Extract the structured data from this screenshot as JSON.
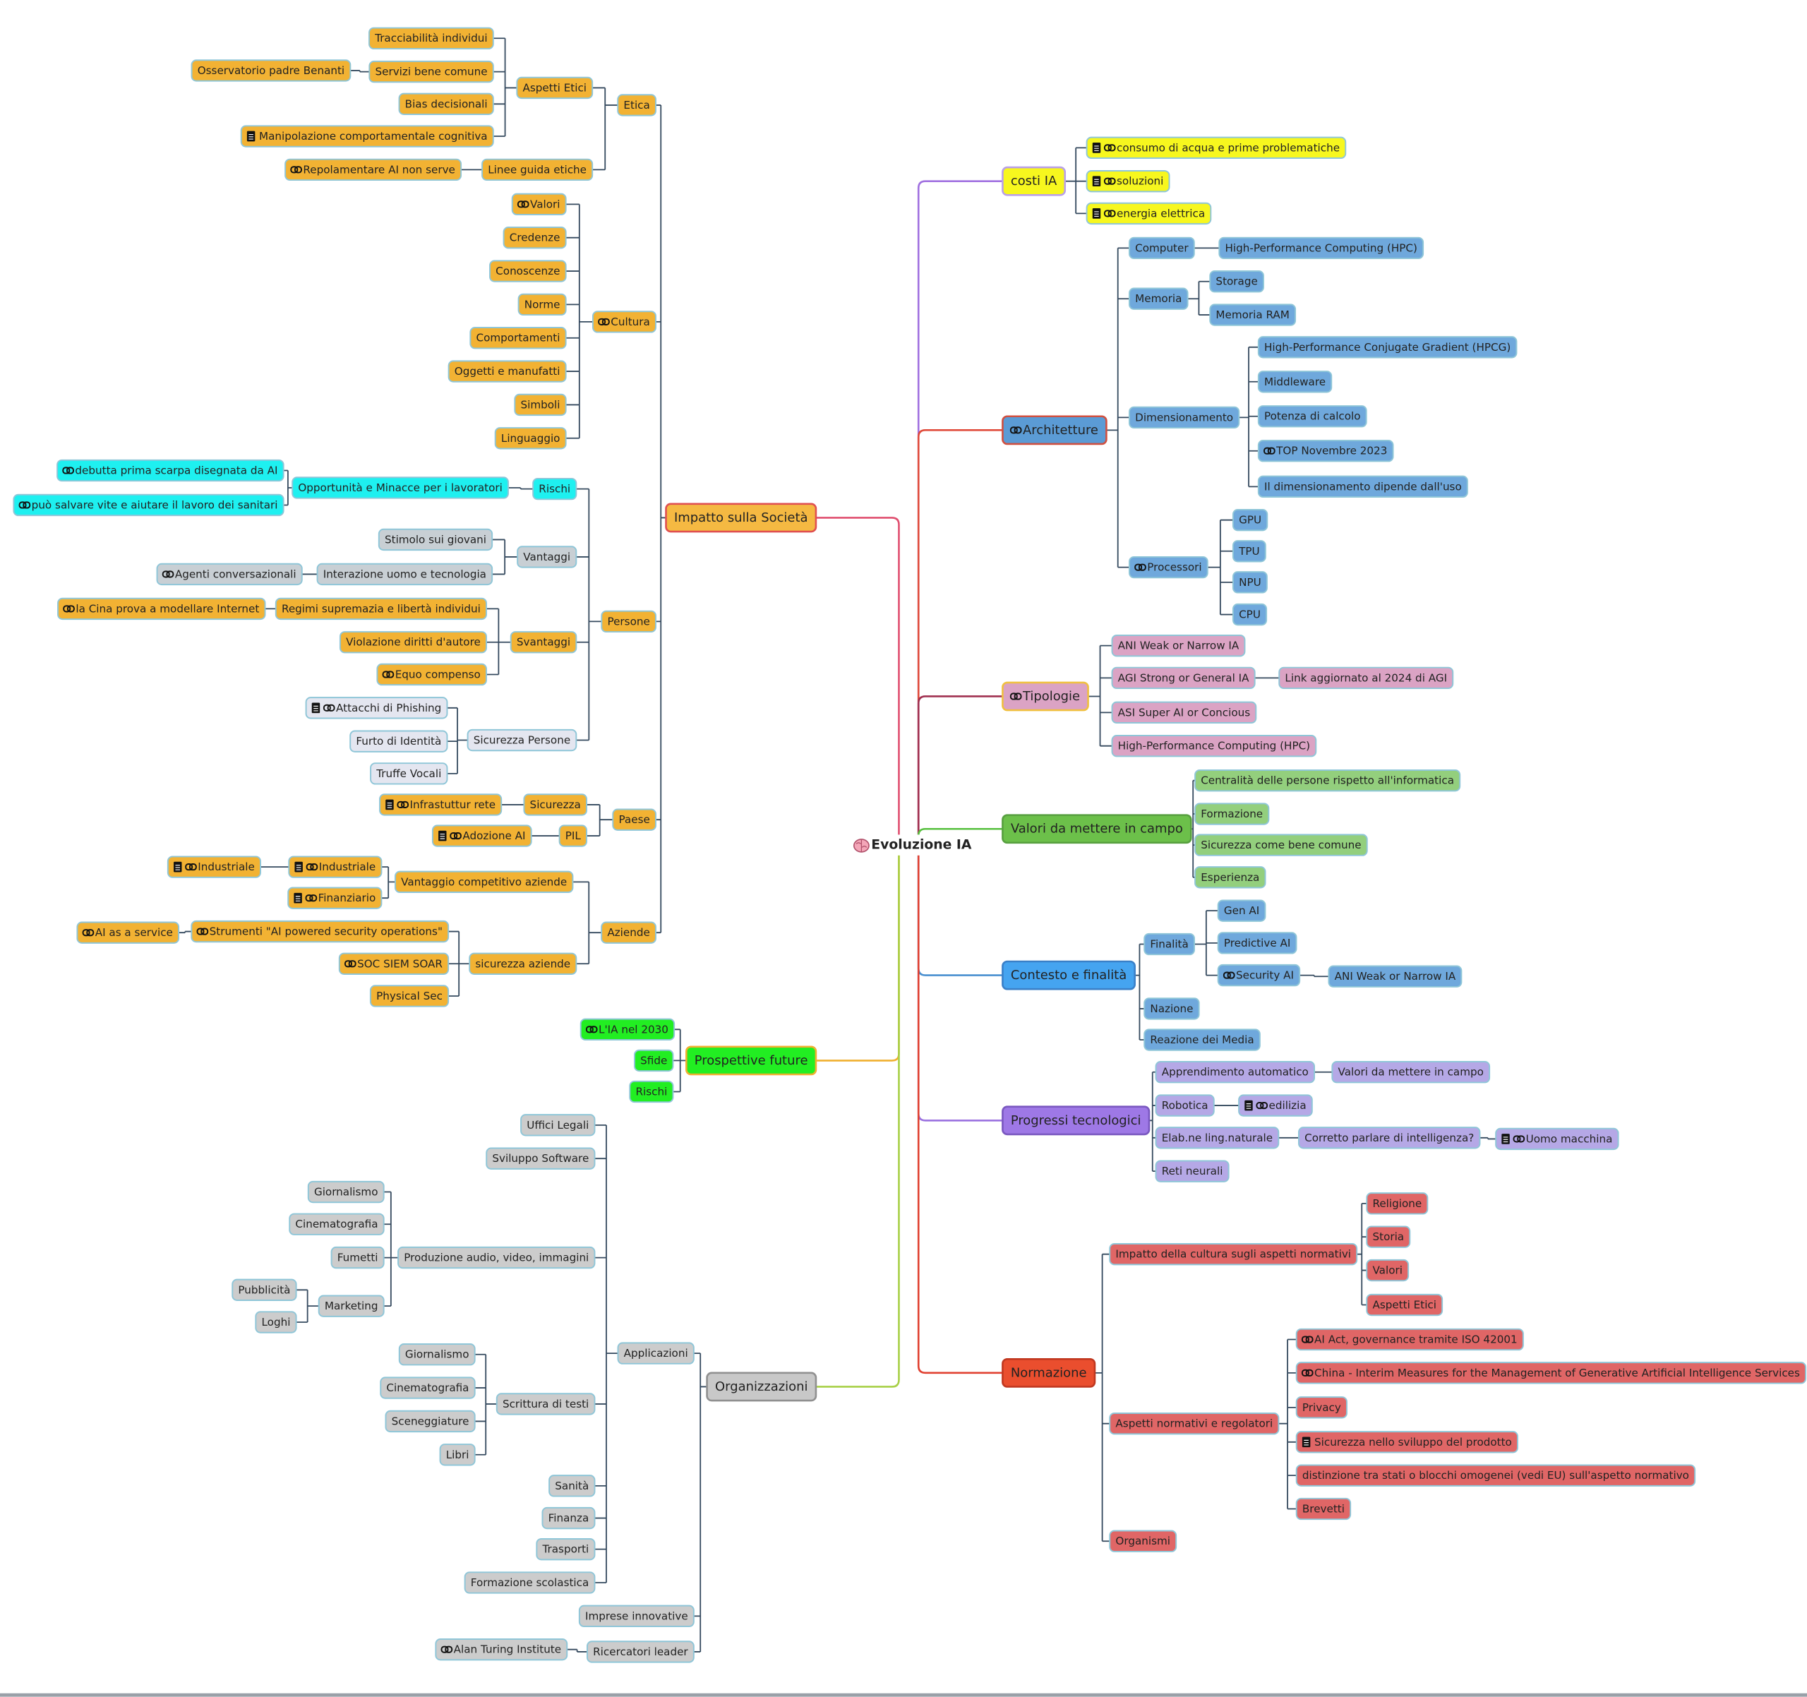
{
  "root": {
    "label": "Evoluzione IA",
    "children": [
      {
        "label": "costi IA",
        "children": [
          {
            "label": "consumo di acqua e prime problematiche"
          },
          {
            "label": "soluzioni"
          },
          {
            "label": "energia elettrica"
          }
        ]
      },
      {
        "label": "Architetture",
        "children": [
          {
            "label": "Computer",
            "children": [
              {
                "label": "High-Performance Computing (HPC)"
              }
            ]
          },
          {
            "label": "Memoria",
            "children": [
              {
                "label": "Storage"
              },
              {
                "label": "Memoria RAM"
              }
            ]
          },
          {
            "label": "Dimensionamento",
            "children": [
              {
                "label": "High-Performance Conjugate Gradient (HPCG)"
              },
              {
                "label": "Middleware"
              },
              {
                "label": "Potenza di calcolo"
              },
              {
                "label": "TOP Novembre 2023"
              },
              {
                "label": "Il dimensionamento dipende dall'uso"
              }
            ]
          },
          {
            "label": "Processori",
            "children": [
              {
                "label": "GPU"
              },
              {
                "label": "TPU"
              },
              {
                "label": "NPU"
              },
              {
                "label": "CPU"
              }
            ]
          }
        ]
      },
      {
        "label": "Tipologie",
        "children": [
          {
            "label": "ANI Weak or Narrow IA"
          },
          {
            "label": "AGI Strong or General IA",
            "children": [
              {
                "label": "Link aggiornato al 2024 di AGI"
              }
            ]
          },
          {
            "label": "ASI Super AI or Concious"
          },
          {
            "label": "High-Performance Computing (HPC)"
          }
        ]
      },
      {
        "label": "Valori da mettere in campo",
        "children": [
          {
            "label": "Centralità delle persone rispetto all'informatica"
          },
          {
            "label": "Formazione"
          },
          {
            "label": "Sicurezza come bene comune"
          },
          {
            "label": "Esperienza"
          }
        ]
      },
      {
        "label": "Contesto e finalità",
        "children": [
          {
            "label": "Finalità",
            "children": [
              {
                "label": "Gen AI"
              },
              {
                "label": "Predictive AI"
              },
              {
                "label": "Security AI",
                "children": [
                  {
                    "label": "ANI Weak or Narrow IA"
                  }
                ]
              }
            ]
          },
          {
            "label": "Nazione"
          },
          {
            "label": "Reazione dei Media"
          }
        ]
      },
      {
        "label": "Progressi tecnologici",
        "children": [
          {
            "label": "Apprendimento automatico",
            "children": [
              {
                "label": "Valori da mettere in campo"
              }
            ]
          },
          {
            "label": "Robotica",
            "children": [
              {
                "label": "edilizia"
              }
            ]
          },
          {
            "label": "Elab.ne ling.naturale",
            "children": [
              {
                "label": "Corretto parlare di intelligenza?",
                "children": [
                  {
                    "label": "Uomo macchina"
                  }
                ]
              }
            ]
          },
          {
            "label": "Reti neurali"
          }
        ]
      },
      {
        "label": "Normazione",
        "children": [
          {
            "label": "Impatto della cultura sugli aspetti normativi",
            "children": [
              {
                "label": "Religione"
              },
              {
                "label": "Storia"
              },
              {
                "label": "Valori"
              },
              {
                "label": "Aspetti Etici"
              }
            ]
          },
          {
            "label": "Aspetti normativi e regolatori",
            "children": [
              {
                "label": "AI Act, governance tramite ISO 42001"
              },
              {
                "label": "China - Interim Measures for the Management of Generative Artificial Intelligence Services"
              },
              {
                "label": "Privacy"
              },
              {
                "label": "Sicurezza nello sviluppo del prodotto"
              },
              {
                "label": "distinzione tra stati o blocchi omogenei (vedi EU) sull'aspetto normativo"
              },
              {
                "label": "Brevetti"
              }
            ]
          },
          {
            "label": "Organismi"
          }
        ]
      },
      {
        "label": "Impatto sulla Società",
        "children": [
          {
            "label": "Etica",
            "children": [
              {
                "label": "Aspetti Etici",
                "children": [
                  {
                    "label": "Tracciabilità individui"
                  },
                  {
                    "label": "Servizi bene comune",
                    "children": [
                      {
                        "label": "Osservatorio padre Benanti"
                      }
                    ]
                  },
                  {
                    "label": "Bias decisionali"
                  },
                  {
                    "label": "Manipolazione comportamentale cognitiva"
                  }
                ]
              },
              {
                "label": "Linee guida etiche",
                "children": [
                  {
                    "label": "Repolamentare AI non serve"
                  }
                ]
              }
            ]
          },
          {
            "label": "Cultura",
            "children": [
              {
                "label": "Valori"
              },
              {
                "label": "Credenze"
              },
              {
                "label": "Conoscenze"
              },
              {
                "label": "Norme"
              },
              {
                "label": "Comportamenti"
              },
              {
                "label": "Oggetti e manufatti"
              },
              {
                "label": "Simboli"
              },
              {
                "label": "Linguaggio"
              }
            ]
          },
          {
            "label": "Persone",
            "children": [
              {
                "label": "Rischi",
                "children": [
                  {
                    "label": "Opportunità e Minacce per i lavoratori",
                    "children": [
                      {
                        "label": "debutta prima scarpa disegnata da AI"
                      },
                      {
                        "label": "può salvare vite e aiutare il lavoro dei sanitari"
                      }
                    ]
                  }
                ]
              },
              {
                "label": "Vantaggi",
                "children": [
                  {
                    "label": "Stimolo sui giovani"
                  },
                  {
                    "label": "Interazione uomo e tecnologia",
                    "children": [
                      {
                        "label": "Agenti conversazionali"
                      }
                    ]
                  }
                ]
              },
              {
                "label": "Svantaggi",
                "children": [
                  {
                    "label": "Regimi supremazia e libertà individui",
                    "children": [
                      {
                        "label": "la Cina prova a modellare Internet"
                      }
                    ]
                  },
                  {
                    "label": "Violazione diritti d'autore"
                  },
                  {
                    "label": "Equo compenso"
                  }
                ]
              },
              {
                "label": "Sicurezza Persone",
                "children": [
                  {
                    "label": "Attacchi di Phishing"
                  },
                  {
                    "label": "Furto di Identità"
                  },
                  {
                    "label": "Truffe Vocali"
                  }
                ]
              }
            ]
          },
          {
            "label": "Paese",
            "children": [
              {
                "label": "Sicurezza",
                "children": [
                  {
                    "label": "Infrastuttur rete"
                  }
                ]
              },
              {
                "label": "PIL",
                "children": [
                  {
                    "label": "Adozione AI"
                  }
                ]
              }
            ]
          },
          {
            "label": "Aziende",
            "children": [
              {
                "label": "Vantaggio competitivo aziende",
                "children": [
                  {
                    "label": "Industriale",
                    "children": [
                      {
                        "label": "Industriale"
                      }
                    ]
                  },
                  {
                    "label": "Finanziario"
                  }
                ]
              },
              {
                "label": "sicurezza aziende",
                "children": [
                  {
                    "label": "Strumenti \"AI powered security operations\"",
                    "children": [
                      {
                        "label": "AI as a service"
                      }
                    ]
                  },
                  {
                    "label": "SOC SIEM SOAR"
                  },
                  {
                    "label": "Physical Sec"
                  }
                ]
              }
            ]
          }
        ]
      },
      {
        "label": "Prospettive future",
        "children": [
          {
            "label": "L'IA nel 2030"
          },
          {
            "label": "Sfide"
          },
          {
            "label": "Rischi"
          }
        ]
      },
      {
        "label": "Organizzazioni",
        "children": [
          {
            "label": "Applicazioni",
            "children": [
              {
                "label": "Uffici Legali"
              },
              {
                "label": "Sviluppo Software"
              },
              {
                "label": "Produzione audio, video, immagini",
                "children": [
                  {
                    "label": "Giornalismo"
                  },
                  {
                    "label": "Cinematografia"
                  },
                  {
                    "label": "Fumetti"
                  },
                  {
                    "label": "Marketing",
                    "children": [
                      {
                        "label": "Pubblicità"
                      },
                      {
                        "label": "Loghi"
                      }
                    ]
                  }
                ]
              },
              {
                "label": "Scrittura di testi",
                "children": [
                  {
                    "label": "Giornalismo"
                  },
                  {
                    "label": "Cinematografia"
                  },
                  {
                    "label": "Sceneggiature"
                  },
                  {
                    "label": "Libri"
                  }
                ]
              },
              {
                "label": "Sanità"
              },
              {
                "label": "Finanza"
              },
              {
                "label": "Trasporti"
              },
              {
                "label": "Formazione scolastica"
              }
            ]
          },
          {
            "label": "Imprese innovative"
          },
          {
            "label": "Ricercatori leader",
            "children": [
              {
                "label": "Alan Turing Institute"
              }
            ]
          }
        ]
      }
    ]
  }
}
